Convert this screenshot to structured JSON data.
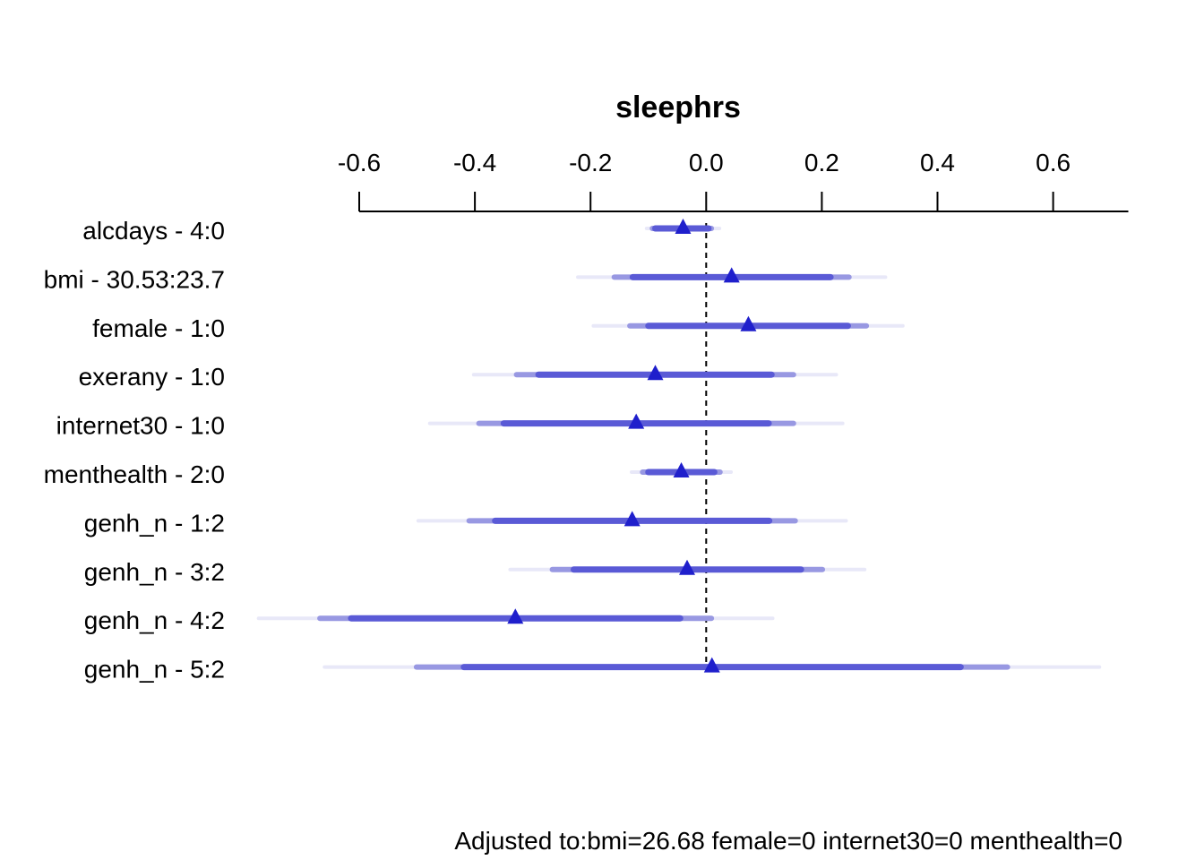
{
  "chart_data": {
    "type": "interval",
    "title": "sleephrs",
    "x_ticks": [
      -0.6,
      -0.4,
      -0.2,
      0.0,
      0.2,
      0.4,
      0.6
    ],
    "x_tick_labels": [
      "-0.6",
      "-0.4",
      "-0.2",
      "0.0",
      "0.2",
      "0.4",
      "0.6"
    ],
    "xlim": [
      -0.6,
      0.73
    ],
    "reference_line": 0.0,
    "footnote": "Adjusted to:bmi=26.68 female=0 internet30=0 menthealth=0",
    "interval_levels": [
      "0.99",
      "0.95",
      "0.90"
    ],
    "colors": {
      "ci99": "#e8e8f8",
      "ci95": "#9898e2",
      "ci90": "#5a5ad6",
      "point": "#1f1fcc",
      "axis": "#000000"
    },
    "rows": [
      {
        "label": "alcdays - 4:0",
        "est": -0.04,
        "ci90": [
          -0.088,
          0.004
        ],
        "ci95": [
          -0.093,
          0.009
        ],
        "ci99": [
          -0.103,
          0.023
        ]
      },
      {
        "label": "bmi - 30.53:23.7",
        "est": 0.044,
        "ci90": [
          -0.127,
          0.215
        ],
        "ci95": [
          -0.159,
          0.247
        ],
        "ci99": [
          -0.222,
          0.31
        ]
      },
      {
        "label": "female - 1:0",
        "est": 0.073,
        "ci90": [
          -0.1,
          0.245
        ],
        "ci95": [
          -0.132,
          0.277
        ],
        "ci99": [
          -0.195,
          0.34
        ]
      },
      {
        "label": "exerany - 1:0",
        "est": -0.088,
        "ci90": [
          -0.29,
          0.113
        ],
        "ci95": [
          -0.328,
          0.151
        ],
        "ci99": [
          -0.402,
          0.225
        ]
      },
      {
        "label": "internet30 - 1:0",
        "est": -0.121,
        "ci90": [
          -0.35,
          0.108
        ],
        "ci95": [
          -0.393,
          0.151
        ],
        "ci99": [
          -0.478,
          0.236
        ]
      },
      {
        "label": "menthealth - 2:0",
        "est": -0.043,
        "ci90": [
          -0.1,
          0.014
        ],
        "ci95": [
          -0.11,
          0.024
        ],
        "ci99": [
          -0.129,
          0.043
        ]
      },
      {
        "label": "genh_n - 1:2",
        "est": -0.128,
        "ci90": [
          -0.365,
          0.109
        ],
        "ci95": [
          -0.41,
          0.154
        ],
        "ci99": [
          -0.498,
          0.242
        ]
      },
      {
        "label": "genh_n - 3:2",
        "est": -0.033,
        "ci90": [
          -0.229,
          0.164
        ],
        "ci95": [
          -0.266,
          0.201
        ],
        "ci99": [
          -0.339,
          0.274
        ]
      },
      {
        "label": "genh_n - 4:2",
        "est": -0.33,
        "ci90": [
          -0.614,
          -0.045
        ],
        "ci95": [
          -0.668,
          0.009
        ],
        "ci99": [
          -0.774,
          0.115
        ]
      },
      {
        "label": "genh_n - 5:2",
        "est": 0.01,
        "ci90": [
          -0.419,
          0.44
        ],
        "ci95": [
          -0.501,
          0.521
        ],
        "ci99": [
          -0.66,
          0.68
        ]
      }
    ]
  }
}
